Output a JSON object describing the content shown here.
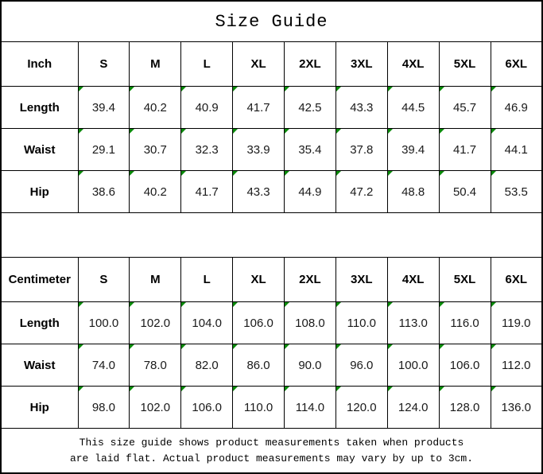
{
  "title": "Size Guide",
  "colors": {
    "marker_green": "#0a8a0a",
    "border": "#000000",
    "background": "#ffffff",
    "text": "#000000"
  },
  "tables": [
    {
      "unit_label": "Inch",
      "sizes": [
        "S",
        "M",
        "L",
        "XL",
        "2XL",
        "3XL",
        "4XL",
        "5XL",
        "6XL"
      ],
      "rows": [
        {
          "label": "Length",
          "values": [
            "39.4",
            "40.2",
            "40.9",
            "41.7",
            "42.5",
            "43.3",
            "44.5",
            "45.7",
            "46.9"
          ]
        },
        {
          "label": "Waist",
          "values": [
            "29.1",
            "30.7",
            "32.3",
            "33.9",
            "35.4",
            "37.8",
            "39.4",
            "41.7",
            "44.1"
          ]
        },
        {
          "label": "Hip",
          "values": [
            "38.6",
            "40.2",
            "41.7",
            "43.3",
            "44.9",
            "47.2",
            "48.8",
            "50.4",
            "53.5"
          ]
        }
      ]
    },
    {
      "unit_label": "Centimeter",
      "sizes": [
        "S",
        "M",
        "L",
        "XL",
        "2XL",
        "3XL",
        "4XL",
        "5XL",
        "6XL"
      ],
      "rows": [
        {
          "label": "Length",
          "values": [
            "100.0",
            "102.0",
            "104.0",
            "106.0",
            "108.0",
            "110.0",
            "113.0",
            "116.0",
            "119.0"
          ]
        },
        {
          "label": "Waist",
          "values": [
            "74.0",
            "78.0",
            "82.0",
            "86.0",
            "90.0",
            "96.0",
            "100.0",
            "106.0",
            "112.0"
          ]
        },
        {
          "label": "Hip",
          "values": [
            "98.0",
            "102.0",
            "106.0",
            "110.0",
            "114.0",
            "120.0",
            "124.0",
            "128.0",
            "136.0"
          ]
        }
      ]
    }
  ],
  "footer": {
    "line1": "This size guide shows product measurements taken when products",
    "line2": "are laid flat. Actual product measurements may vary by up to 3cm."
  },
  "chart_data": [
    {
      "type": "table",
      "title": "Size Guide",
      "columns": [
        "Inch",
        "S",
        "M",
        "L",
        "XL",
        "2XL",
        "3XL",
        "4XL",
        "5XL",
        "6XL"
      ],
      "rows": [
        [
          "Length",
          39.4,
          40.2,
          40.9,
          41.7,
          42.5,
          43.3,
          44.5,
          45.7,
          46.9
        ],
        [
          "Waist",
          29.1,
          30.7,
          32.3,
          33.9,
          35.4,
          37.8,
          39.4,
          41.7,
          44.1
        ],
        [
          "Hip",
          38.6,
          40.2,
          41.7,
          43.3,
          44.9,
          47.2,
          48.8,
          50.4,
          53.5
        ]
      ]
    },
    {
      "type": "table",
      "title": "Size Guide",
      "columns": [
        "Centimeter",
        "S",
        "M",
        "L",
        "XL",
        "2XL",
        "3XL",
        "4XL",
        "5XL",
        "6XL"
      ],
      "rows": [
        [
          "Length",
          100.0,
          102.0,
          104.0,
          106.0,
          108.0,
          110.0,
          113.0,
          116.0,
          119.0
        ],
        [
          "Waist",
          74.0,
          78.0,
          82.0,
          86.0,
          90.0,
          96.0,
          100.0,
          106.0,
          112.0
        ],
        [
          "Hip",
          98.0,
          102.0,
          106.0,
          110.0,
          114.0,
          120.0,
          124.0,
          128.0,
          136.0
        ]
      ]
    }
  ]
}
